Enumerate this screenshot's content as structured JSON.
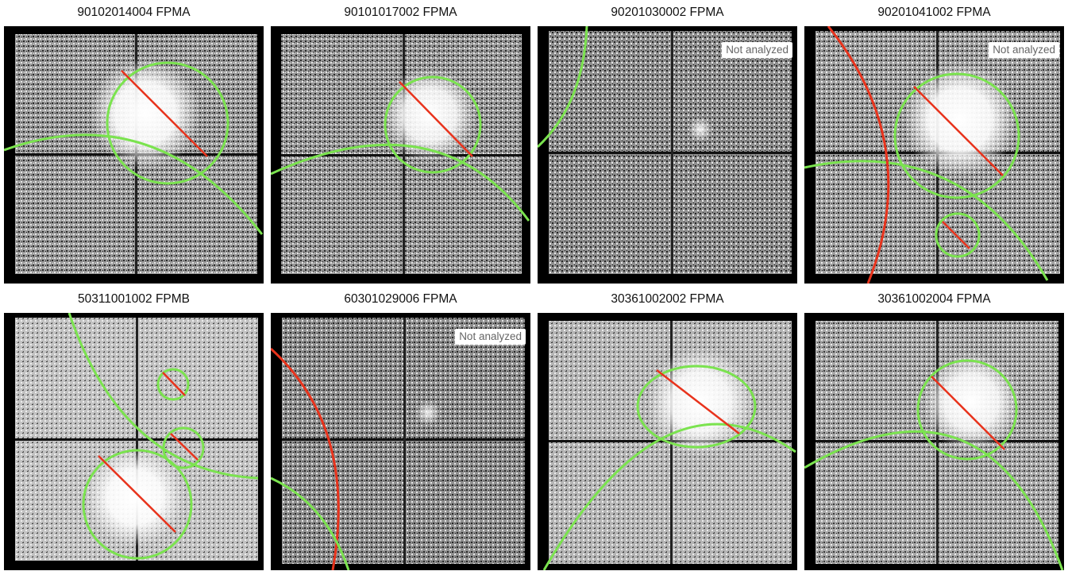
{
  "panels": [
    {
      "title": "90102014004 FPMA",
      "badge": ""
    },
    {
      "title": "90101017002 FPMA",
      "badge": ""
    },
    {
      "title": "90201030002 FPMA",
      "badge": "Not analyzed"
    },
    {
      "title": "90201041002 FPMA",
      "badge": "Not analyzed"
    },
    {
      "title": "50311001002 FPMB",
      "badge": ""
    },
    {
      "title": "60301029006 FPMA",
      "badge": "Not analyzed"
    },
    {
      "title": "30361002002 FPMA",
      "badge": ""
    },
    {
      "title": "30361002004 FPMA",
      "badge": ""
    }
  ],
  "colors": {
    "region_circle": "#7be34f",
    "region_line": "#e8331c",
    "background": "#000000",
    "field": "#bdbdbd"
  }
}
